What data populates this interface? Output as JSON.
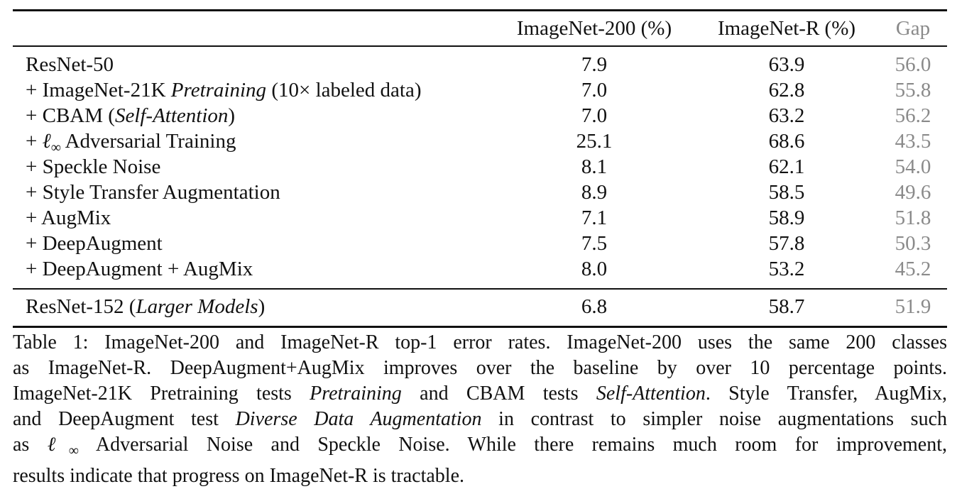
{
  "table": {
    "headers": [
      "",
      "ImageNet-200 (%)",
      "ImageNet-R (%)",
      "Gap"
    ],
    "rows": [
      {
        "method": "ResNet-50",
        "in200": "7.9",
        "inr": "63.9",
        "gap": "56.0"
      },
      {
        "method_prefix": "+ ImageNet-21K ",
        "method_italic": "Pretraining",
        "method_suffix": " (10× labeled data)",
        "in200": "7.0",
        "inr": "62.8",
        "gap": "55.8"
      },
      {
        "method_prefix": "+ CBAM (",
        "method_italic": "Self-Attention",
        "method_suffix": ")",
        "in200": "7.0",
        "inr": "63.2",
        "gap": "56.2"
      },
      {
        "method_prefix": "+ ",
        "method_math": "ℓ",
        "method_math_sub": "∞",
        "method_suffix": " Adversarial Training",
        "in200": "25.1",
        "inr": "68.6",
        "gap": "43.5"
      },
      {
        "method": "+ Speckle Noise",
        "in200": "8.1",
        "inr": "62.1",
        "gap": "54.0"
      },
      {
        "method": "+ Style Transfer Augmentation",
        "in200": "8.9",
        "inr": "58.5",
        "gap": "49.6"
      },
      {
        "method": "+ AugMix",
        "in200": "7.1",
        "inr": "58.9",
        "gap": "51.8"
      },
      {
        "method": "+ DeepAugment",
        "in200": "7.5",
        "inr": "57.8",
        "gap": "50.3"
      },
      {
        "method": "+ DeepAugment + AugMix",
        "in200": "8.0",
        "inr": "53.2",
        "gap": "45.2"
      },
      {
        "method_prefix": "ResNet-152 (",
        "method_italic": "Larger Models",
        "method_suffix": ")",
        "in200": "6.8",
        "inr": "58.7",
        "gap": "51.9"
      }
    ]
  },
  "caption": {
    "l1": "Table 1: ImageNet-200 and ImageNet-R top-1 error rates. ImageNet-200 uses the same 200 classes",
    "l2": "as ImageNet-R. DeepAugment+AugMix improves over the baseline by over 10 percentage points.",
    "l3_a": "ImageNet-21K Pretraining tests ",
    "l3_b": "Pretraining",
    "l3_c": " and CBAM tests ",
    "l3_d": "Self-Attention",
    "l3_e": ". Style Transfer, AugMix,",
    "l4_a": "and DeepAugment test ",
    "l4_b": "Diverse Data Augmentation",
    "l4_c": " in contrast to simpler noise augmentations such",
    "l5_a": "as ",
    "l5_math": "ℓ",
    "l5_sub": "∞",
    "l5_b": " Adversarial Noise and Speckle Noise. While there remains much room for improvement,",
    "l6": "results indicate that progress on ImageNet-R is tractable."
  }
}
